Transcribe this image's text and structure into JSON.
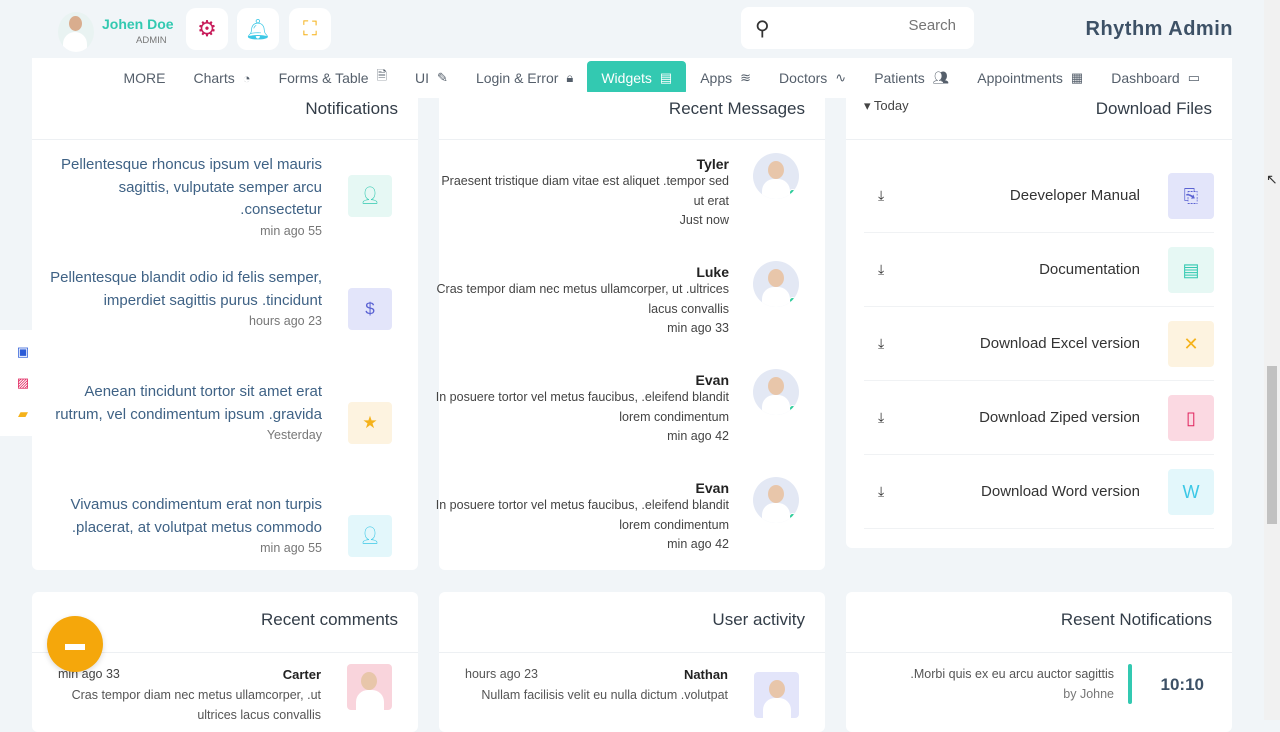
{
  "header": {
    "user_name": "Johen Doe",
    "user_role": "ADMIN",
    "search_placeholder": "Search",
    "brand": "Rhythm Admin"
  },
  "nav": {
    "items": [
      {
        "label": "MORE",
        "icon": ""
      },
      {
        "label": "Charts",
        "icon": "◔"
      },
      {
        "label": "Forms & Table",
        "icon": "🗎"
      },
      {
        "label": "UI",
        "icon": "✎"
      },
      {
        "label": "Login & Error",
        "icon": "🔒︎"
      },
      {
        "label": "Widgets",
        "icon": "▤",
        "active": true
      },
      {
        "label": "Apps",
        "icon": "≋"
      },
      {
        "label": "Doctors",
        "icon": "∿"
      },
      {
        "label": "Patients",
        "icon": "👥︎"
      },
      {
        "label": "Appointments",
        "icon": "▦"
      },
      {
        "label": "Dashboard",
        "icon": "▭"
      }
    ]
  },
  "notifications": {
    "title": "Notifications",
    "items": [
      {
        "text": "Pellentesque rhoncus ipsum vel mauris sagittis, vulputate semper arcu .consectetur",
        "time": "min ago 55",
        "icon": "user-icon",
        "color": "#33c9b1",
        "bg": "#e6f8f4"
      },
      {
        "text": "Pellentesque blandit odio id felis semper, imperdiet sagittis purus .tincidunt",
        "time": "hours ago 23",
        "icon": "dollar-icon",
        "color": "#5b63d3",
        "bg": "#e3e5fa"
      },
      {
        "text": "Aenean tincidunt tortor sit amet erat rutrum, vel condimentum ipsum .gravida",
        "time": "Yesterday",
        "icon": "star-icon",
        "color": "#f5b21b",
        "bg": "#fdf3e0"
      },
      {
        "text": "Vivamus condimentum erat non turpis .placerat, at volutpat metus commodo",
        "time": "min ago 55",
        "icon": "user-icon",
        "color": "#3cc8e6",
        "bg": "#e3f7fb"
      }
    ]
  },
  "messages": {
    "title": "Recent Messages",
    "items": [
      {
        "name": "Tyler",
        "text": "Praesent tristique diam vitae est aliquet .tempor sed ut erat",
        "time": "Just now"
      },
      {
        "name": "Luke",
        "text": "Cras tempor diam nec metus ullamcorper, ut .ultrices lacus convallis",
        "time": "min ago 33"
      },
      {
        "name": "Evan",
        "text": "In posuere tortor vel metus faucibus, .eleifend blandit lorem condimentum",
        "time": "min ago 42"
      },
      {
        "name": "Evan",
        "text": "In posuere tortor vel metus faucibus, .eleifend blandit lorem condimentum",
        "time": "min ago 42"
      }
    ]
  },
  "downloads": {
    "title": "Download Files",
    "filter": "Today",
    "items": [
      {
        "label": "Deeveloper Manual",
        "icon": "pdf-icon",
        "glyph": "⎘",
        "color": "#5b63d3",
        "bg": "#e3e5fa"
      },
      {
        "label": "Documentation",
        "icon": "doc-icon",
        "glyph": "▤",
        "color": "#33c9b1",
        "bg": "#e6f8f4"
      },
      {
        "label": "Download Excel version",
        "icon": "excel-icon",
        "glyph": "✕",
        "color": "#f5b21b",
        "bg": "#fdf3e0"
      },
      {
        "label": "Download Ziped version",
        "icon": "zip-icon",
        "glyph": "▯",
        "color": "#e0245e",
        "bg": "#fbd9e2"
      },
      {
        "label": "Download Word version",
        "icon": "word-icon",
        "glyph": "W",
        "color": "#3cc8e6",
        "bg": "#e3f7fb"
      }
    ]
  },
  "comments": {
    "title": "Recent comments",
    "item": {
      "name": "Carter",
      "time": "min ago 33",
      "text": "Cras tempor diam nec metus ullamcorper, .ut ultrices lacus convallis"
    }
  },
  "activity": {
    "title": "User activity",
    "item": {
      "name": "Nathan",
      "time": "hours ago 23",
      "text": "Nullam facilisis velit eu nulla dictum .volutpat"
    }
  },
  "resent": {
    "title": "Resent Notifications",
    "item": {
      "text": ".Morbi quis ex eu arcu auctor sagittis",
      "by": "by Johne",
      "time": "10:10"
    }
  },
  "colors": {
    "accent": "#33c9b1",
    "background": "#f1f5f8"
  }
}
